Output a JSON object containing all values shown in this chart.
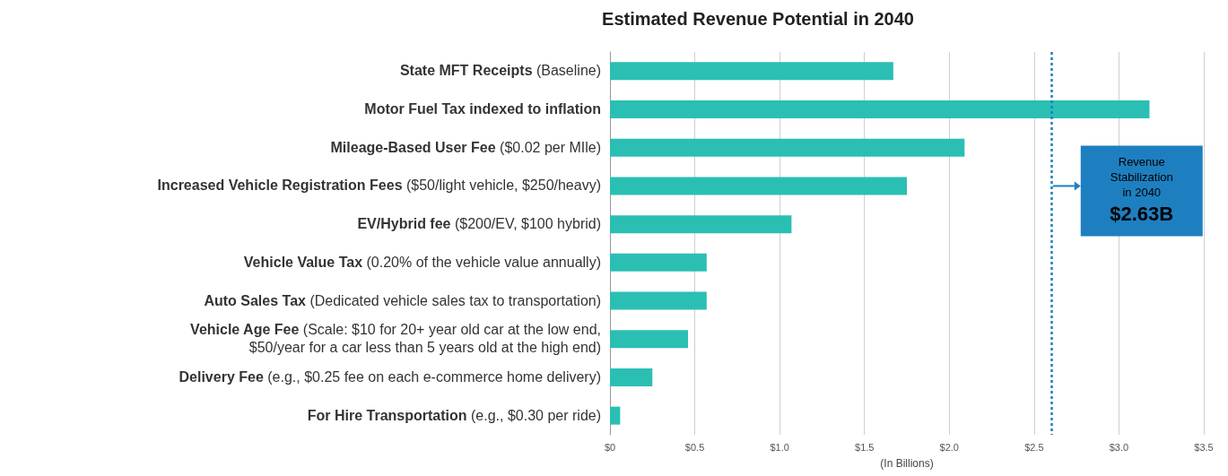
{
  "chart_data": {
    "type": "bar",
    "orientation": "horizontal",
    "title": "Estimated Revenue Potential in 2040",
    "xlabel": "(In Billions)",
    "categories": [
      "State MFT Receipts (Baseline)",
      "Motor Fuel Tax indexed to inflation",
      "Mileage-Based User Fee ($0.02 per MIle)",
      "Increased Vehicle Registration Fees ($50/light vehicle, $250/heavy)",
      "EV/Hybrid fee ($200/EV, $100 hybrid)",
      "Vehicle Value Tax (0.20% of the vehicle value annually)",
      "Auto Sales Tax (Dedicated vehicle sales tax to transportation)",
      "Vehicle Age Fee (Scale: $10 for 20+ year old car at the low end,\n$50/year for a car less than 5 years old at the high end)",
      "Delivery Fee (e.g., $0.25 fee on each e-commerce home delivery)",
      "For Hire Transportation (e.g., $0.30 per ride)"
    ],
    "values": [
      1.67,
      3.18,
      2.09,
      1.75,
      1.07,
      0.57,
      0.57,
      0.46,
      0.25,
      0.06
    ],
    "color": "#2bbfb3",
    "xlim": [
      0,
      3.5
    ],
    "xticks": [
      {
        "value": 0,
        "label": "$0"
      },
      {
        "value": 0.5,
        "label": "$0.5"
      },
      {
        "value": 1,
        "label": "$1.0"
      },
      {
        "value": 1.5,
        "label": "$1.5"
      },
      {
        "value": 2,
        "label": "$2.0"
      },
      {
        "value": 2.5,
        "label": "$2.5"
      },
      {
        "value": 3,
        "label": "$3.0"
      },
      {
        "value": 3.5,
        "label": "$3.5"
      }
    ],
    "grid": "x",
    "ref_lines": [
      {
        "axis": "x",
        "value": 2.6,
        "label": "Revenue\nStabilization\nin 2040\n$2.63B",
        "color": "#1e7fc0",
        "line_style": "dotted"
      }
    ]
  }
}
